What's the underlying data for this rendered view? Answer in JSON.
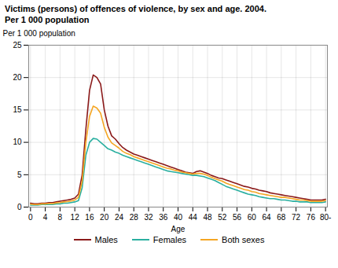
{
  "chart_data": {
    "type": "line",
    "title": "Victims (persons) of offences of violence, by sex and age. 2004.\nPer 1 000 population",
    "ylabel": "Per 1 000 population",
    "xlabel": "Age",
    "x": [
      0,
      1,
      2,
      3,
      4,
      5,
      6,
      7,
      8,
      9,
      10,
      11,
      12,
      13,
      14,
      15,
      16,
      17,
      18,
      19,
      20,
      21,
      22,
      23,
      24,
      25,
      26,
      27,
      28,
      29,
      30,
      31,
      32,
      33,
      34,
      35,
      36,
      37,
      38,
      39,
      40,
      41,
      42,
      43,
      44,
      45,
      46,
      47,
      48,
      49,
      50,
      51,
      52,
      53,
      54,
      55,
      56,
      57,
      58,
      59,
      60,
      61,
      62,
      63,
      64,
      65,
      66,
      67,
      68,
      69,
      70,
      71,
      72,
      73,
      74,
      75,
      76,
      77,
      78,
      79,
      80
    ],
    "xlim": [
      -0.5,
      80.5
    ],
    "xticks": [
      0,
      4,
      8,
      12,
      16,
      20,
      24,
      28,
      32,
      36,
      40,
      44,
      48,
      52,
      56,
      60,
      64,
      68,
      72,
      76,
      {
        "value": 80,
        "label": "80-"
      }
    ],
    "ylim": [
      0,
      25
    ],
    "yticks": [
      0,
      5,
      10,
      15,
      20,
      25
    ],
    "grid": true,
    "legend": "bottom",
    "series": [
      {
        "name": "Males",
        "color": "#8B1A1A",
        "values": [
          0.6,
          0.5,
          0.5,
          0.6,
          0.6,
          0.7,
          0.7,
          0.8,
          0.9,
          1.0,
          1.1,
          1.2,
          1.4,
          2.0,
          5.0,
          12.0,
          18.0,
          20.4,
          20.0,
          19.0,
          15.0,
          12.5,
          11.0,
          10.5,
          9.8,
          9.2,
          8.8,
          8.5,
          8.2,
          8.0,
          7.8,
          7.6,
          7.4,
          7.2,
          7.0,
          6.8,
          6.6,
          6.4,
          6.2,
          6.0,
          5.8,
          5.6,
          5.4,
          5.3,
          5.2,
          5.5,
          5.6,
          5.4,
          5.2,
          4.9,
          4.7,
          4.5,
          4.4,
          4.2,
          4.0,
          3.8,
          3.6,
          3.4,
          3.2,
          3.1,
          2.9,
          2.8,
          2.6,
          2.5,
          2.4,
          2.2,
          2.1,
          2.0,
          1.9,
          1.8,
          1.7,
          1.6,
          1.5,
          1.4,
          1.3,
          1.2,
          1.1,
          1.1,
          1.1,
          1.1,
          1.2
        ]
      },
      {
        "name": "Females",
        "color": "#2AAFA0",
        "values": [
          0.3,
          0.3,
          0.3,
          0.4,
          0.4,
          0.4,
          0.4,
          0.5,
          0.5,
          0.6,
          0.6,
          0.7,
          0.8,
          1.0,
          3.0,
          8.0,
          10.0,
          10.6,
          10.5,
          10.0,
          9.5,
          9.0,
          8.8,
          8.5,
          8.3,
          8.0,
          7.8,
          7.6,
          7.4,
          7.2,
          7.0,
          6.8,
          6.6,
          6.4,
          6.2,
          6.0,
          5.8,
          5.6,
          5.5,
          5.4,
          5.3,
          5.2,
          5.1,
          5.0,
          4.9,
          4.9,
          4.8,
          4.7,
          4.5,
          4.3,
          4.1,
          3.8,
          3.5,
          3.2,
          3.0,
          2.8,
          2.6,
          2.4,
          2.2,
          2.0,
          1.9,
          1.8,
          1.6,
          1.5,
          1.4,
          1.3,
          1.3,
          1.2,
          1.1,
          1.1,
          1.0,
          0.9,
          0.9,
          0.8,
          0.8,
          0.8,
          0.7,
          0.7,
          0.7,
          0.7,
          0.8
        ]
      },
      {
        "name": "Both sexes",
        "color": "#F5A623",
        "values": [
          0.45,
          0.4,
          0.4,
          0.5,
          0.5,
          0.55,
          0.55,
          0.65,
          0.7,
          0.8,
          0.85,
          0.95,
          1.1,
          1.5,
          4.0,
          10.0,
          14.0,
          15.6,
          15.3,
          14.5,
          12.3,
          10.8,
          9.9,
          9.5,
          9.1,
          8.6,
          8.3,
          8.1,
          7.8,
          7.6,
          7.4,
          7.2,
          7.0,
          6.8,
          6.6,
          6.4,
          6.2,
          6.0,
          5.9,
          5.7,
          5.6,
          5.4,
          5.3,
          5.2,
          5.1,
          5.2,
          5.2,
          5.1,
          4.9,
          4.6,
          4.4,
          4.2,
          4.0,
          3.7,
          3.5,
          3.3,
          3.1,
          2.9,
          2.7,
          2.6,
          2.4,
          2.3,
          2.1,
          2.0,
          1.9,
          1.8,
          1.7,
          1.6,
          1.5,
          1.5,
          1.4,
          1.3,
          1.2,
          1.1,
          1.1,
          1.0,
          0.9,
          0.9,
          0.9,
          0.9,
          1.0
        ]
      }
    ]
  }
}
